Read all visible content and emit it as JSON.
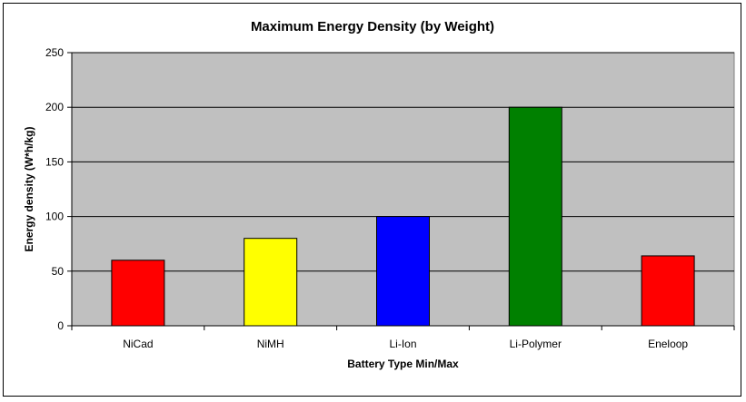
{
  "chart_data": {
    "type": "bar",
    "title": "Maximum Energy Density (by Weight)",
    "xlabel": "Battery Type Min/Max",
    "ylabel": "Energy density (W*h/kg)",
    "categories": [
      "NiCad",
      "NiMH",
      "Li-Ion",
      "Li-Polymer",
      "Eneloop"
    ],
    "values": [
      60,
      80,
      100,
      200,
      64
    ],
    "colors": [
      "#ff0000",
      "#ffff00",
      "#0000ff",
      "#008000",
      "#ff0000"
    ],
    "ylim": [
      0,
      250
    ],
    "yticks": [
      0,
      50,
      100,
      150,
      200,
      250
    ],
    "grid": true,
    "legend": "none",
    "plot_background": "#c0c0c0"
  }
}
